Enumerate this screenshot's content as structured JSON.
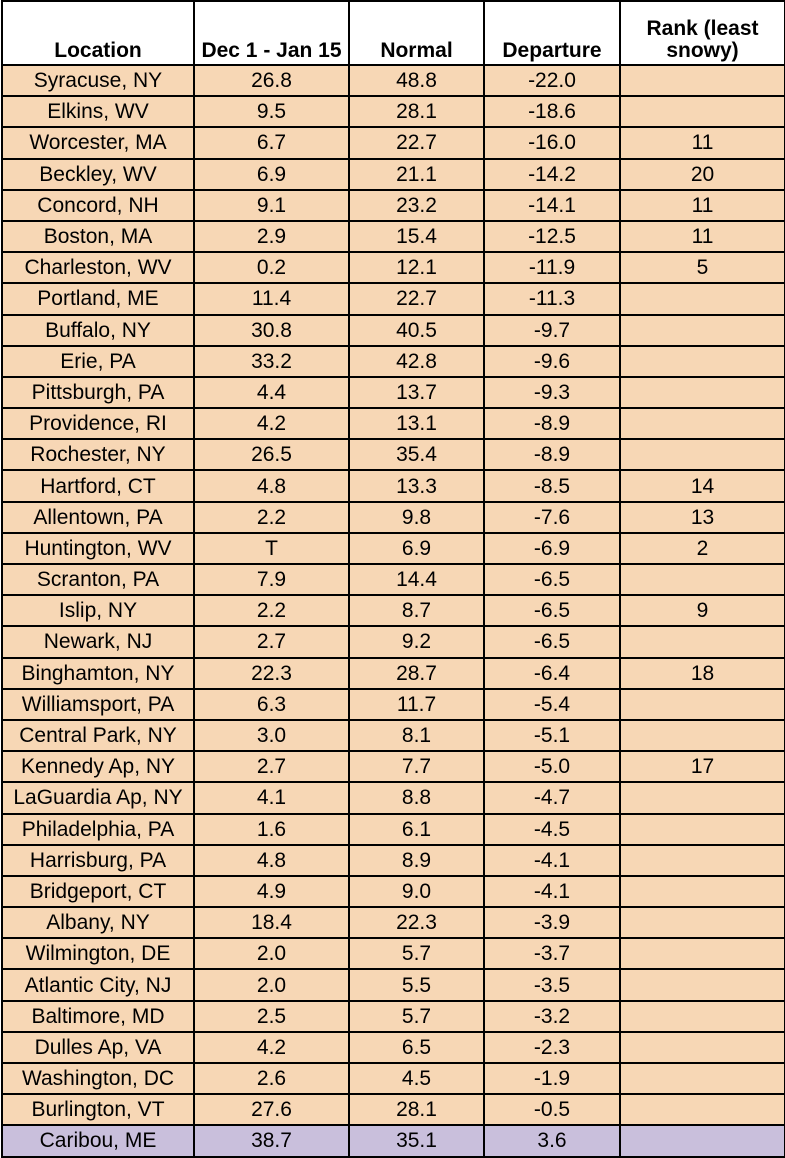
{
  "columns": [
    "Location",
    "Dec 1 - Jan 15",
    "Normal",
    "Departure",
    "Rank (least snowy)"
  ],
  "rows": [
    {
      "location": "Syracuse, NY",
      "value": "26.8",
      "normal": "48.8",
      "departure": "-22.0",
      "rank": ""
    },
    {
      "location": "Elkins, WV",
      "value": "9.5",
      "normal": "28.1",
      "departure": "-18.6",
      "rank": ""
    },
    {
      "location": "Worcester, MA",
      "value": "6.7",
      "normal": "22.7",
      "departure": "-16.0",
      "rank": "11"
    },
    {
      "location": "Beckley, WV",
      "value": "6.9",
      "normal": "21.1",
      "departure": "-14.2",
      "rank": "20"
    },
    {
      "location": "Concord, NH",
      "value": "9.1",
      "normal": "23.2",
      "departure": "-14.1",
      "rank": "11"
    },
    {
      "location": "Boston, MA",
      "value": "2.9",
      "normal": "15.4",
      "departure": "-12.5",
      "rank": "11"
    },
    {
      "location": "Charleston, WV",
      "value": "0.2",
      "normal": "12.1",
      "departure": "-11.9",
      "rank": "5"
    },
    {
      "location": "Portland, ME",
      "value": "11.4",
      "normal": "22.7",
      "departure": "-11.3",
      "rank": ""
    },
    {
      "location": "Buffalo, NY",
      "value": "30.8",
      "normal": "40.5",
      "departure": "-9.7",
      "rank": ""
    },
    {
      "location": "Erie, PA",
      "value": "33.2",
      "normal": "42.8",
      "departure": "-9.6",
      "rank": ""
    },
    {
      "location": "Pittsburgh, PA",
      "value": "4.4",
      "normal": "13.7",
      "departure": "-9.3",
      "rank": ""
    },
    {
      "location": "Providence, RI",
      "value": "4.2",
      "normal": "13.1",
      "departure": "-8.9",
      "rank": ""
    },
    {
      "location": "Rochester, NY",
      "value": "26.5",
      "normal": "35.4",
      "departure": "-8.9",
      "rank": ""
    },
    {
      "location": "Hartford, CT",
      "value": "4.8",
      "normal": "13.3",
      "departure": "-8.5",
      "rank": "14"
    },
    {
      "location": "Allentown, PA",
      "value": "2.2",
      "normal": "9.8",
      "departure": "-7.6",
      "rank": "13"
    },
    {
      "location": "Huntington, WV",
      "value": "T",
      "normal": "6.9",
      "departure": "-6.9",
      "rank": "2"
    },
    {
      "location": "Scranton, PA",
      "value": "7.9",
      "normal": "14.4",
      "departure": "-6.5",
      "rank": ""
    },
    {
      "location": "Islip, NY",
      "value": "2.2",
      "normal": "8.7",
      "departure": "-6.5",
      "rank": "9"
    },
    {
      "location": "Newark, NJ",
      "value": "2.7",
      "normal": "9.2",
      "departure": "-6.5",
      "rank": ""
    },
    {
      "location": "Binghamton, NY",
      "value": "22.3",
      "normal": "28.7",
      "departure": "-6.4",
      "rank": "18"
    },
    {
      "location": "Williamsport, PA",
      "value": "6.3",
      "normal": "11.7",
      "departure": "-5.4",
      "rank": ""
    },
    {
      "location": "Central Park, NY",
      "value": "3.0",
      "normal": "8.1",
      "departure": "-5.1",
      "rank": ""
    },
    {
      "location": "Kennedy Ap, NY",
      "value": "2.7",
      "normal": "7.7",
      "departure": "-5.0",
      "rank": "17"
    },
    {
      "location": "LaGuardia Ap, NY",
      "value": "4.1",
      "normal": "8.8",
      "departure": "-4.7",
      "rank": ""
    },
    {
      "location": "Philadelphia, PA",
      "value": "1.6",
      "normal": "6.1",
      "departure": "-4.5",
      "rank": ""
    },
    {
      "location": "Harrisburg, PA",
      "value": "4.8",
      "normal": "8.9",
      "departure": "-4.1",
      "rank": ""
    },
    {
      "location": "Bridgeport, CT",
      "value": "4.9",
      "normal": "9.0",
      "departure": "-4.1",
      "rank": ""
    },
    {
      "location": "Albany, NY",
      "value": "18.4",
      "normal": "22.3",
      "departure": "-3.9",
      "rank": ""
    },
    {
      "location": "Wilmington, DE",
      "value": "2.0",
      "normal": "5.7",
      "departure": "-3.7",
      "rank": ""
    },
    {
      "location": "Atlantic City, NJ",
      "value": "2.0",
      "normal": "5.5",
      "departure": "-3.5",
      "rank": ""
    },
    {
      "location": "Baltimore, MD",
      "value": "2.5",
      "normal": "5.7",
      "departure": "-3.2",
      "rank": ""
    },
    {
      "location": "Dulles Ap, VA",
      "value": "4.2",
      "normal": "6.5",
      "departure": "-2.3",
      "rank": ""
    },
    {
      "location": "Washington, DC",
      "value": "2.6",
      "normal": "4.5",
      "departure": "-1.9",
      "rank": ""
    },
    {
      "location": "Burlington, VT",
      "value": "27.6",
      "normal": "28.1",
      "departure": "-0.5",
      "rank": ""
    },
    {
      "location": "Caribou, ME",
      "value": "38.7",
      "normal": "35.1",
      "departure": "3.6",
      "rank": ""
    }
  ],
  "colors": {
    "row_fill": "#f7d7b5",
    "last_row_fill": "#c9bfdc",
    "header_fill": "#ffffff"
  }
}
